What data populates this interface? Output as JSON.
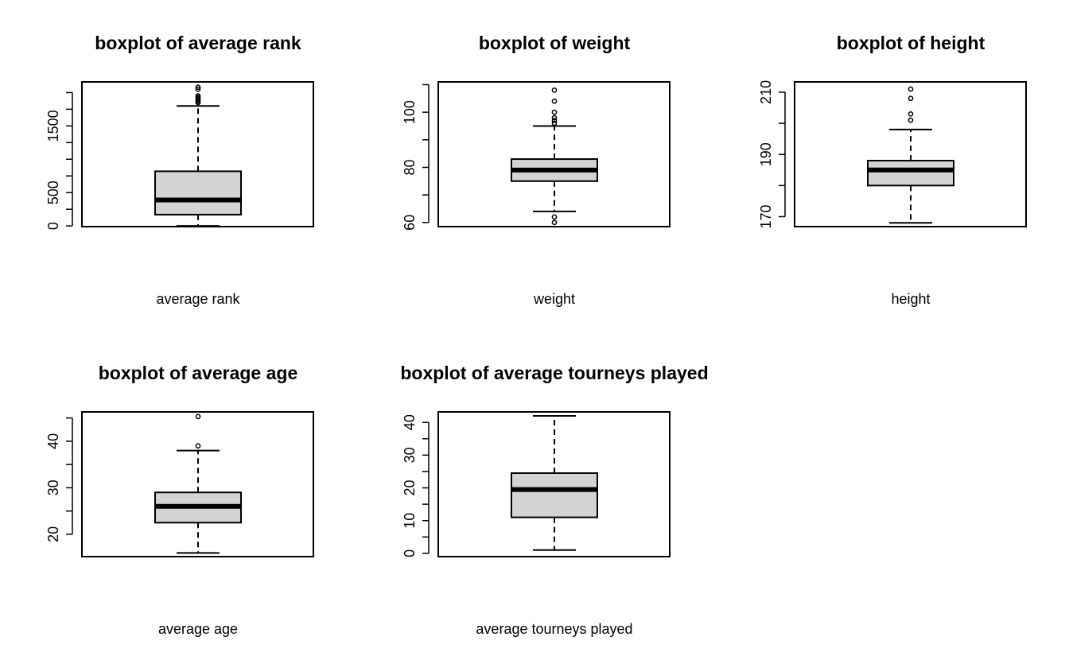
{
  "chart_data": [
    {
      "type": "box",
      "title": "boxplot of average rank",
      "xlabel": "average rank",
      "ylim": [
        -10,
        2160
      ],
      "yticks": [
        0,
        500,
        1500
      ],
      "stats": {
        "min": 0,
        "q1": 170,
        "median": 390,
        "q3": 820,
        "max": 1800
      },
      "outliers": [
        1850,
        1870,
        1890,
        1910,
        1930,
        1950,
        2050,
        2080
      ]
    },
    {
      "type": "box",
      "title": "boxplot of weight",
      "xlabel": "weight",
      "ylim": [
        58.5,
        111
      ],
      "yticks": [
        60,
        80,
        100
      ],
      "stats": {
        "min": 64,
        "q1": 75,
        "median": 79,
        "q3": 83,
        "max": 95
      },
      "outliers": [
        60,
        62,
        96,
        97,
        98,
        100,
        104,
        108
      ]
    },
    {
      "type": "box",
      "title": "boxplot of height",
      "xlabel": "height",
      "ylim": [
        166.8,
        213.3
      ],
      "yticks": [
        170,
        190,
        210
      ],
      "stats": {
        "min": 168,
        "q1": 180,
        "median": 185,
        "q3": 188,
        "max": 198
      },
      "outliers": [
        201,
        203,
        208,
        211
      ]
    },
    {
      "type": "box",
      "title": "boxplot of average age",
      "xlabel": "average age",
      "ylim": [
        15.2,
        46.3
      ],
      "yticks": [
        20,
        30,
        40
      ],
      "stats": {
        "min": 16,
        "q1": 22.5,
        "median": 26,
        "q3": 29,
        "max": 38
      },
      "outliers": [
        39,
        45.3
      ]
    },
    {
      "type": "box",
      "title": "boxplot of average tourneys played",
      "xlabel": "average tourneys played",
      "ylim": [
        -1,
        43.2
      ],
      "yticks": [
        0,
        10,
        20,
        30,
        40
      ],
      "stats": {
        "min": 1,
        "q1": 11,
        "median": 19.5,
        "q3": 24.5,
        "max": 42
      },
      "outliers": []
    }
  ]
}
